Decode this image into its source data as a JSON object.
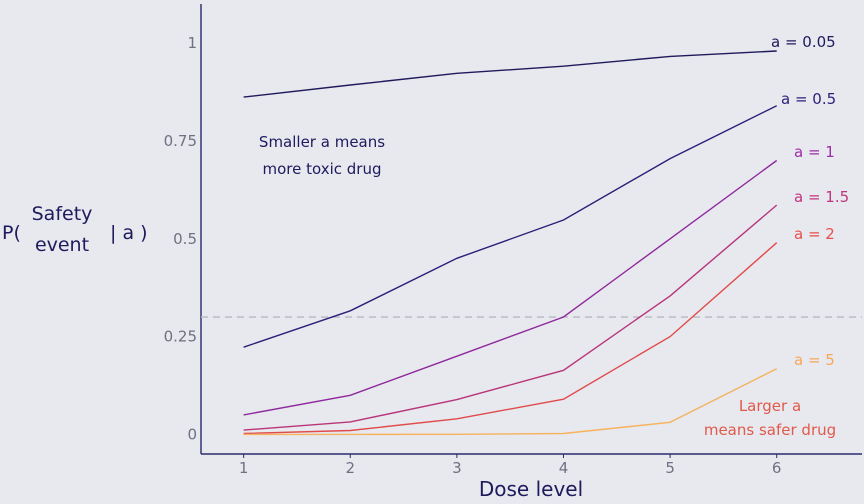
{
  "chart_data": {
    "type": "line",
    "xlabel": "Dose level",
    "ylabel": {
      "prefix": "P(",
      "line1": "Safety",
      "line2": "event",
      "suffix": "| a )"
    },
    "x": [
      1,
      2,
      3,
      4,
      5,
      6
    ],
    "xticks": [
      "1",
      "2",
      "3",
      "4",
      "5",
      "6"
    ],
    "yticks": [
      {
        "value": 0,
        "label": "0"
      },
      {
        "value": 0.25,
        "label": "0.25"
      },
      {
        "value": 0.5,
        "label": "0.5"
      },
      {
        "value": 0.75,
        "label": "0.75"
      },
      {
        "value": 1,
        "label": "1"
      }
    ],
    "xlim": [
      0.6,
      6.8
    ],
    "ylim": [
      -0.05,
      1.1
    ],
    "reference_line": {
      "y": 0.3,
      "color": "#b8b8c0"
    },
    "series": [
      {
        "name": "a = 0.05",
        "color": "#1f1a5c",
        "values": [
          0.862,
          0.893,
          0.923,
          0.941,
          0.966,
          0.98
        ]
      },
      {
        "name": "a = 0.5",
        "color": "#2d1e78",
        "values": [
          0.223,
          0.316,
          0.45,
          0.548,
          0.705,
          0.84
        ]
      },
      {
        "name": "a = 1",
        "color": "#8e2a9c",
        "values": [
          0.05,
          0.1,
          0.2,
          0.3,
          0.5,
          0.7
        ]
      },
      {
        "name": "a = 1.5",
        "color": "#b8357a",
        "values": [
          0.011,
          0.032,
          0.089,
          0.164,
          0.354,
          0.586
        ]
      },
      {
        "name": "a = 2",
        "color": "#e04a4a",
        "values": [
          0.0025,
          0.01,
          0.04,
          0.09,
          0.25,
          0.49
        ]
      },
      {
        "name": "a = 5",
        "color": "#f7b25c",
        "values": [
          0.0,
          0.0,
          0.0003,
          0.0024,
          0.031,
          0.168
        ]
      }
    ],
    "label_colors": {
      "a = 0.05": "#1f1a5c",
      "a = 0.5": "#2d1e78",
      "a = 1": "#9b2fa8",
      "a = 1.5": "#c2357e",
      "a = 2": "#e8504a",
      "a = 5": "#f6a85a"
    },
    "annotations": [
      {
        "lines": [
          "Smaller a means",
          "more toxic drug"
        ],
        "color": "#1f1a5c"
      },
      {
        "lines": [
          "Larger a",
          "means safer drug"
        ],
        "color": "#e05a4a"
      }
    ],
    "grid": false,
    "legend": "direct labels at line ends"
  }
}
